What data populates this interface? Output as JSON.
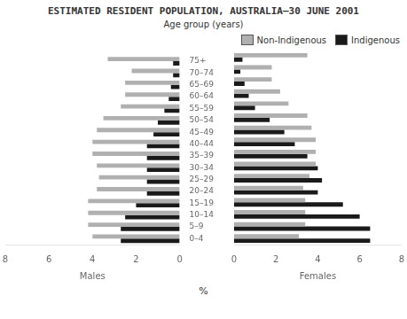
{
  "chart_data": [
    {
      "type": "bar",
      "orientation": "horizontal",
      "title": "ESTIMATED RESIDENT POPULATION, AUSTRALIA–30 JUNE 2001",
      "subtitle": "Age group (years)",
      "annotations": [
        "%"
      ],
      "categories": [
        "0–4",
        "5–9",
        "10–14",
        "15–19",
        "20–24",
        "25–29",
        "30–34",
        "35–39",
        "40–44",
        "45–49",
        "50–54",
        "55–59",
        "60–64",
        "65–69",
        "70–74",
        "75+"
      ],
      "xlabel": "Males",
      "xlim": [
        8,
        0
      ],
      "xticks": [
        0,
        2,
        4,
        6,
        8
      ],
      "grid": false,
      "series": [
        {
          "name": "Non-Indigenous",
          "color": "#b0b0b0",
          "values": [
            4.0,
            4.2,
            4.2,
            4.2,
            3.8,
            3.7,
            3.8,
            4.0,
            4.0,
            3.8,
            3.5,
            2.7,
            2.5,
            2.5,
            2.2,
            3.3
          ]
        },
        {
          "name": "Indigenous",
          "color": "#1a1a1a",
          "values": [
            2.7,
            2.7,
            2.5,
            2.0,
            1.5,
            1.5,
            1.5,
            1.5,
            1.5,
            1.2,
            1.0,
            0.7,
            0.5,
            0.4,
            0.3,
            0.3
          ]
        }
      ]
    },
    {
      "type": "bar",
      "orientation": "horizontal",
      "categories": [
        "0–4",
        "5–9",
        "10–14",
        "15–19",
        "20–24",
        "25–29",
        "30–34",
        "35–39",
        "40–44",
        "45–49",
        "50–54",
        "55–59",
        "60–64",
        "65–69",
        "70–74",
        "75+"
      ],
      "xlabel": "Females",
      "xlim": [
        0,
        8
      ],
      "xticks": [
        0,
        2,
        4,
        6,
        8
      ],
      "grid": false,
      "legend": "upper right",
      "series": [
        {
          "name": "Non-Indigenous",
          "color": "#b0b0b0",
          "values": [
            3.1,
            3.4,
            3.4,
            3.4,
            3.3,
            3.6,
            3.9,
            3.9,
            3.9,
            3.7,
            3.5,
            2.6,
            2.2,
            1.8,
            1.8,
            3.5
          ]
        },
        {
          "name": "Indigenous",
          "color": "#1a1a1a",
          "values": [
            6.5,
            6.5,
            6.0,
            5.2,
            4.0,
            4.2,
            4.0,
            3.5,
            2.9,
            2.4,
            1.7,
            1.0,
            0.7,
            0.5,
            0.3,
            0.4
          ]
        }
      ]
    }
  ]
}
